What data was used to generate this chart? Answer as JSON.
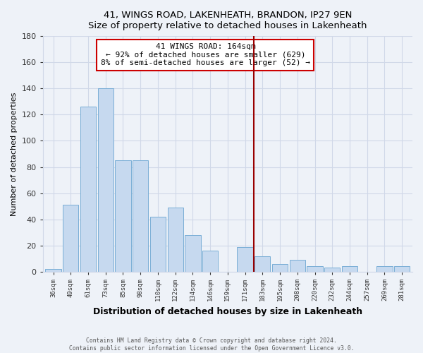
{
  "title": "41, WINGS ROAD, LAKENHEATH, BRANDON, IP27 9EN",
  "subtitle": "Size of property relative to detached houses in Lakenheath",
  "xlabel": "Distribution of detached houses by size in Lakenheath",
  "ylabel": "Number of detached properties",
  "bar_labels": [
    "36sqm",
    "49sqm",
    "61sqm",
    "73sqm",
    "85sqm",
    "98sqm",
    "110sqm",
    "122sqm",
    "134sqm",
    "146sqm",
    "159sqm",
    "171sqm",
    "183sqm",
    "195sqm",
    "208sqm",
    "220sqm",
    "232sqm",
    "244sqm",
    "257sqm",
    "269sqm",
    "281sqm"
  ],
  "bar_values": [
    2,
    51,
    126,
    140,
    85,
    85,
    42,
    49,
    28,
    16,
    0,
    19,
    12,
    6,
    9,
    4,
    3,
    4,
    0,
    4,
    4
  ],
  "bar_color": "#c6d9ef",
  "bar_edge_color": "#7aaed6",
  "vline_x": 11.5,
  "vline_color": "#990000",
  "annotation_title": "41 WINGS ROAD: 164sqm",
  "annotation_line1": "← 92% of detached houses are smaller (629)",
  "annotation_line2": "8% of semi-detached houses are larger (52) →",
  "annotation_box_edge": "#cc0000",
  "ylim": [
    0,
    180
  ],
  "yticks": [
    0,
    20,
    40,
    60,
    80,
    100,
    120,
    140,
    160,
    180
  ],
  "footer1": "Contains HM Land Registry data © Crown copyright and database right 2024.",
  "footer2": "Contains public sector information licensed under the Open Government Licence v3.0.",
  "bg_color": "#eef2f8",
  "plot_bg_color": "#eef2f8",
  "grid_color": "#d0d8e8"
}
